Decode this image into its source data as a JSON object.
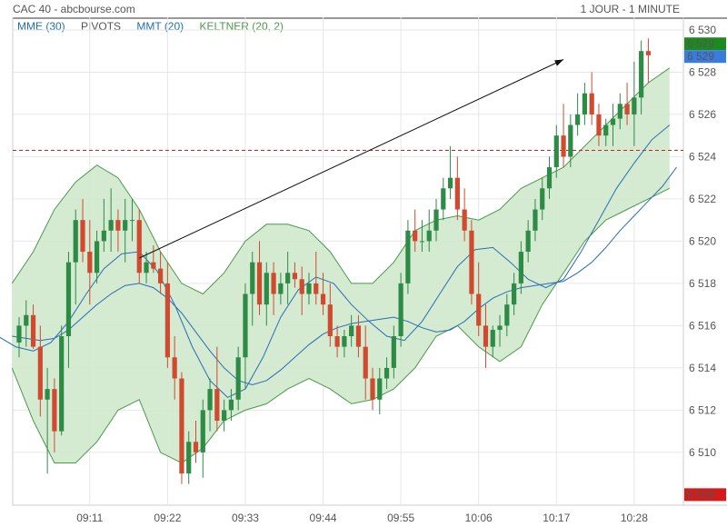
{
  "header": {
    "title": "CAC 40 - abcbourse.com",
    "period": "1 JOUR - 1 MINUTE"
  },
  "indicators": [
    {
      "label": "MME (30)",
      "color": "#1f6fb5"
    },
    {
      "label": "PIVOTS",
      "color": "#555555"
    },
    {
      "label": "MMT (20)",
      "color": "#1f6fb5"
    },
    {
      "label": "KELTNER (20, 2)",
      "color": "#4a9a4a"
    }
  ],
  "colors": {
    "up": "#2e8b46",
    "down": "#d04a30",
    "band_fill": "#cfe8cc",
    "band_line": "#4a9a4a",
    "ma_line": "#2a6db5",
    "pivot": "#cc2222"
  },
  "price_labels": [
    {
      "value": "6 529",
      "color": "#1d8a1d"
    },
    {
      "value": "6 529",
      "color": "#3a7be0"
    },
    {
      "value": "6 508",
      "color": "#d41a1a"
    }
  ],
  "chart_data": {
    "type": "candlestick",
    "ylim": [
      6507.5,
      6530.6
    ],
    "y_ticks": [
      "6 510",
      "6 512",
      "6 514",
      "6 516",
      "6 518",
      "6 520",
      "6 522",
      "6 524",
      "6 526",
      "6 528",
      "6 530"
    ],
    "x_ticks": [
      "09:11",
      "09:22",
      "09:33",
      "09:44",
      "09:55",
      "10:06",
      "10:17",
      "10:28"
    ],
    "pivot": 6524.3,
    "candles": [
      [
        6515.2,
        6516.4,
        6514.5,
        6516.0
      ],
      [
        6516.0,
        6517.2,
        6515.0,
        6516.5
      ],
      [
        6516.5,
        6517.0,
        6514.9,
        6515.0
      ],
      [
        6515.0,
        6516.0,
        6511.7,
        6512.5
      ],
      [
        6512.5,
        6514.0,
        6509.0,
        6513.0
      ],
      [
        6513.0,
        6513.5,
        6510.0,
        6511.0
      ],
      [
        6511.0,
        6516.0,
        6510.8,
        6515.5
      ],
      [
        6515.5,
        6519.5,
        6514.0,
        6519.0
      ],
      [
        6519.0,
        6521.5,
        6517.0,
        6521.0
      ],
      [
        6521.0,
        6522.0,
        6519.0,
        6519.5
      ],
      [
        6519.5,
        6521.0,
        6517.0,
        6518.5
      ],
      [
        6518.5,
        6520.5,
        6518.0,
        6520.0
      ],
      [
        6520.0,
        6522.0,
        6519.5,
        6520.5
      ],
      [
        6520.5,
        6522.5,
        6519.5,
        6521.0
      ],
      [
        6521.0,
        6521.5,
        6519.5,
        6520.5
      ],
      [
        6520.5,
        6522.0,
        6519.0,
        6521.0
      ],
      [
        6521.0,
        6522.0,
        6520.0,
        6521.0
      ],
      [
        6521.0,
        6521.5,
        6518.0,
        6518.5
      ],
      [
        6518.5,
        6519.5,
        6518.0,
        6519.0
      ],
      [
        6519.0,
        6519.8,
        6518.5,
        6518.7
      ],
      [
        6518.7,
        6519.5,
        6517.5,
        6518.0
      ],
      [
        6518.0,
        6519.0,
        6514.0,
        6514.5
      ],
      [
        6514.5,
        6515.5,
        6512.5,
        6513.5
      ],
      [
        6513.5,
        6513.8,
        6508.5,
        6509.0
      ],
      [
        6509.0,
        6511.0,
        6508.5,
        6510.5
      ],
      [
        6510.5,
        6511.5,
        6509.5,
        6510.0
      ],
      [
        6510.0,
        6512.5,
        6508.8,
        6512.0
      ],
      [
        6512.0,
        6513.5,
        6511.0,
        6513.0
      ],
      [
        6513.0,
        6515.0,
        6511.0,
        6511.5
      ],
      [
        6511.5,
        6512.5,
        6511.0,
        6512.0
      ],
      [
        6512.0,
        6513.0,
        6511.5,
        6512.5
      ],
      [
        6512.5,
        6515.0,
        6512.0,
        6514.5
      ],
      [
        6514.5,
        6518.0,
        6513.0,
        6517.5
      ],
      [
        6517.5,
        6519.5,
        6516.0,
        6519.0
      ],
      [
        6519.0,
        6520.0,
        6516.5,
        6517.0
      ],
      [
        6517.0,
        6519.0,
        6516.0,
        6518.5
      ],
      [
        6518.5,
        6519.0,
        6516.5,
        6517.5
      ],
      [
        6517.5,
        6518.5,
        6517.0,
        6518.0
      ],
      [
        6518.0,
        6519.5,
        6517.0,
        6518.5
      ],
      [
        6518.5,
        6519.0,
        6517.8,
        6518.2
      ],
      [
        6518.2,
        6518.8,
        6516.5,
        6517.5
      ],
      [
        6517.5,
        6518.5,
        6517.0,
        6518.0
      ],
      [
        6518.0,
        6519.5,
        6517.0,
        6517.5
      ],
      [
        6517.5,
        6518.5,
        6516.5,
        6517.0
      ],
      [
        6517.0,
        6518.0,
        6515.0,
        6515.5
      ],
      [
        6515.5,
        6516.0,
        6514.5,
        6515.0
      ],
      [
        6515.0,
        6515.8,
        6514.5,
        6515.5
      ],
      [
        6515.5,
        6516.5,
        6515.0,
        6516.0
      ],
      [
        6516.0,
        6516.5,
        6514.5,
        6515.0
      ],
      [
        6515.0,
        6516.0,
        6512.5,
        6513.5
      ],
      [
        6513.5,
        6514.0,
        6512.0,
        6512.5
      ],
      [
        6512.5,
        6514.0,
        6511.8,
        6513.5
      ],
      [
        6513.5,
        6514.5,
        6513.0,
        6514.0
      ],
      [
        6514.0,
        6516.0,
        6513.5,
        6515.5
      ],
      [
        6515.5,
        6518.5,
        6515.0,
        6518.0
      ],
      [
        6518.0,
        6521.0,
        6517.5,
        6520.5
      ],
      [
        6520.5,
        6521.5,
        6519.5,
        6520.0
      ],
      [
        6520.0,
        6521.0,
        6519.5,
        6520.0
      ],
      [
        6520.0,
        6521.5,
        6519.5,
        6520.5
      ],
      [
        6520.5,
        6522.0,
        6520.0,
        6521.5
      ],
      [
        6521.5,
        6523.0,
        6521.0,
        6522.5
      ],
      [
        6522.5,
        6524.5,
        6522.0,
        6523.0
      ],
      [
        6523.0,
        6524.0,
        6521.0,
        6521.5
      ],
      [
        6521.5,
        6522.5,
        6520.0,
        6520.5
      ],
      [
        6520.5,
        6521.0,
        6517.0,
        6517.5
      ],
      [
        6517.5,
        6519.0,
        6515.5,
        6516.0
      ],
      [
        6516.0,
        6517.0,
        6514.0,
        6515.0
      ],
      [
        6515.0,
        6516.0,
        6514.5,
        6515.8
      ],
      [
        6515.8,
        6516.5,
        6515.0,
        6516.0
      ],
      [
        6516.0,
        6517.5,
        6515.5,
        6517.0
      ],
      [
        6517.0,
        6518.5,
        6516.5,
        6518.0
      ],
      [
        6518.0,
        6520.0,
        6517.5,
        6519.5
      ],
      [
        6519.5,
        6521.0,
        6519.0,
        6520.5
      ],
      [
        6520.5,
        6522.0,
        6520.0,
        6521.5
      ],
      [
        6521.5,
        6523.0,
        6521.0,
        6522.5
      ],
      [
        6522.5,
        6524.0,
        6522.0,
        6523.5
      ],
      [
        6523.5,
        6525.5,
        6523.0,
        6525.0
      ],
      [
        6525.0,
        6526.5,
        6523.5,
        6524.0
      ],
      [
        6524.0,
        6526.0,
        6523.5,
        6525.5
      ],
      [
        6525.5,
        6527.0,
        6525.0,
        6526.0
      ],
      [
        6526.0,
        6527.5,
        6525.5,
        6527.0
      ],
      [
        6527.0,
        6528.0,
        6525.5,
        6526.0
      ],
      [
        6526.0,
        6526.5,
        6524.5,
        6525.0
      ],
      [
        6525.0,
        6525.8,
        6524.5,
        6525.5
      ],
      [
        6525.5,
        6526.5,
        6524.5,
        6525.8
      ],
      [
        6525.8,
        6527.0,
        6525.3,
        6526.5
      ],
      [
        6526.5,
        6527.5,
        6525.5,
        6526.0
      ],
      [
        6526.0,
        6528.5,
        6524.5,
        6526.8
      ],
      [
        6526.8,
        6529.5,
        6526.0,
        6529.0
      ],
      [
        6529.0,
        6529.6,
        6527.5,
        6528.8
      ]
    ],
    "mme_30": [
      6515.5,
      6515.4,
      6515.3,
      6515.4,
      6515.8,
      6516.4,
      6517.0,
      6517.5,
      6517.9,
      6518.0,
      6517.8,
      6517.3,
      6516.6,
      6515.7,
      6514.8,
      6514.0,
      6513.4,
      6513.2,
      6513.4,
      6513.9,
      6514.5,
      6515.1,
      6515.6,
      6515.9,
      6516.1,
      6516.2,
      6516.3,
      6516.4,
      6516.2,
      6515.9,
      6515.7,
      6515.8,
      6516.2,
      6516.8,
      6517.3,
      6517.6,
      6517.8,
      6517.9,
      6518.0,
      6518.1,
      6518.5,
      6519.0,
      6519.7,
      6520.5,
      6521.2,
      6521.9,
      6522.6,
      6523.5
    ],
    "mmt_20": [
      6515.5,
      6515.0,
      6514.8,
      6515.2,
      6516.2,
      6517.5,
      6518.7,
      6519.4,
      6519.5,
      6518.6,
      6517.0,
      6515.0,
      6513.4,
      6512.6,
      6513.0,
      6514.5,
      6516.4,
      6517.7,
      6518.3,
      6518.0,
      6517.0,
      6516.2,
      6515.5,
      6515.3,
      6516.2,
      6517.5,
      6518.8,
      6519.6,
      6519.7,
      6519.0,
      6518.2,
      6517.8,
      6518.2,
      6519.5,
      6521.0,
      6522.5,
      6523.7,
      6524.8,
      6525.5
    ],
    "keltner_upper": [
      6518.0,
      6519.5,
      6521.5,
      6522.8,
      6523.6,
      6523.0,
      6521.5,
      6519.5,
      6518.0,
      6517.5,
      6518.5,
      6520.0,
      6520.8,
      6520.8,
      6520.5,
      6519.5,
      6518.0,
      6518.0,
      6519.0,
      6520.5,
      6521.0,
      6521.2,
      6521.0,
      6521.5,
      6522.5,
      6523.0,
      6523.5,
      6524.5,
      6525.5,
      6526.5,
      6527.5,
      6528.2
    ],
    "keltner_lower": [
      6514.0,
      6511.5,
      6509.5,
      6509.5,
      6510.5,
      6512.0,
      6512.5,
      6510.0,
      6509.5,
      6510.2,
      6511.5,
      6512.0,
      6512.3,
      6513.0,
      6513.5,
      6513.0,
      6512.3,
      6512.5,
      6513.0,
      6514.0,
      6515.5,
      6516.0,
      6515.0,
      6514.3,
      6515.0,
      6517.0,
      6518.5,
      6520.0,
      6521.0,
      6521.5,
      6522.0,
      6522.5
    ]
  },
  "annotation": {
    "trendline": [
      [
        17,
        6519.2
      ],
      [
        77,
        6528.6
      ]
    ]
  }
}
